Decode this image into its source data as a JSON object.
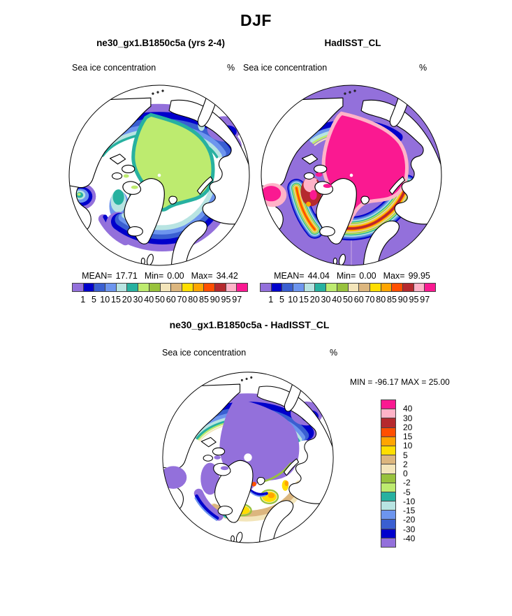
{
  "figure_title": "DJF",
  "panels": {
    "model": {
      "title": "ne30_gx1.B1850c5a (yrs 2-4)",
      "field": "Sea ice concentration",
      "units": "%",
      "stats": {
        "mean_label": "MEAN=",
        "mean": "17.71",
        "min_label": "Min=",
        "min": "0.00",
        "max_label": "Max=",
        "max": "34.42"
      }
    },
    "obs": {
      "title": "HadISST_CL",
      "field": "Sea ice concentration",
      "units": "%",
      "stats": {
        "mean_label": "MEAN=",
        "mean": "44.04",
        "min_label": "Min=",
        "min": "0.00",
        "max_label": "Max=",
        "max": "99.95"
      }
    },
    "diff": {
      "title": "ne30_gx1.B1850c5a - HadISST_CL",
      "field": "Sea ice concentration",
      "units": "%",
      "stats": {
        "min_label": "MIN =",
        "min": "-96.17",
        "max_label": "MAX =",
        "max": "25.00"
      }
    }
  },
  "colorbar": {
    "tick_labels": [
      "1",
      "5",
      "10",
      "15",
      "20",
      "30",
      "40",
      "50",
      "60",
      "70",
      "80",
      "85",
      "90",
      "95",
      "97"
    ],
    "colors_low_to_high": [
      "#9370DB",
      "#0000CC",
      "#3A5FD1",
      "#6D95EE",
      "#B8E4E2",
      "#27B1A0",
      "#BDEB6F",
      "#98C23C",
      "#F3E5BA",
      "#DCB67E",
      "#FFDE00",
      "#FFA500",
      "#FF4F00",
      "#B5292E",
      "#FFB3C8",
      "#FA1991"
    ]
  },
  "diff_colorbar": {
    "tick_labels_top_to_bottom": [
      "40",
      "30",
      "20",
      "15",
      "10",
      "5",
      "2",
      "0",
      "-2",
      "-5",
      "-10",
      "-15",
      "-20",
      "-30",
      "-40"
    ]
  },
  "chart_data": [
    {
      "type": "heatmap",
      "subtype": "north-polar-stereographic-filled-contour-map",
      "title": "ne30_gx1.B1850c5a (yrs 2-4)",
      "season": "DJF",
      "variable": "Sea ice concentration",
      "units": "%",
      "contour_levels": [
        1,
        5,
        10,
        15,
        20,
        30,
        40,
        50,
        60,
        70,
        80,
        85,
        90,
        95,
        97
      ],
      "stats": {
        "mean": 17.71,
        "min": 0.0,
        "max": 34.42
      },
      "legend_position": "bottom"
    },
    {
      "type": "heatmap",
      "subtype": "north-polar-stereographic-filled-contour-map",
      "title": "HadISST_CL",
      "season": "DJF",
      "variable": "Sea ice concentration",
      "units": "%",
      "contour_levels": [
        1,
        5,
        10,
        15,
        20,
        30,
        40,
        50,
        60,
        70,
        80,
        85,
        90,
        95,
        97
      ],
      "stats": {
        "mean": 44.04,
        "min": 0.0,
        "max": 99.95
      },
      "legend_position": "bottom"
    },
    {
      "type": "heatmap",
      "subtype": "north-polar-stereographic-filled-contour-map",
      "title": "ne30_gx1.B1850c5a - HadISST_CL",
      "season": "DJF",
      "variable": "Sea ice concentration",
      "units": "%",
      "contour_levels": [
        -40,
        -30,
        -20,
        -15,
        -10,
        -5,
        -2,
        0,
        2,
        5,
        10,
        15,
        20,
        30,
        40
      ],
      "stats": {
        "min": -96.17,
        "max": 25.0
      },
      "legend_position": "right"
    }
  ]
}
